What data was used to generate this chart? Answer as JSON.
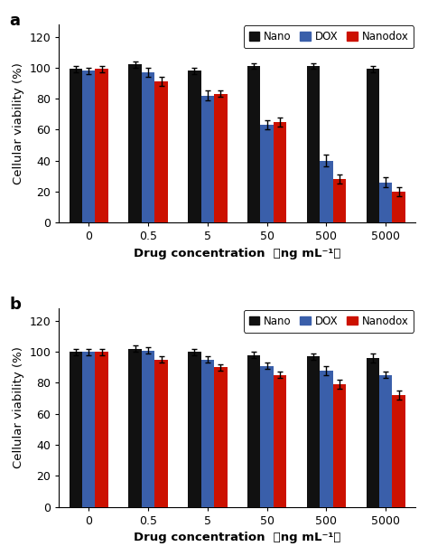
{
  "panel_a": {
    "label": "a",
    "categories": [
      "0",
      "0.5",
      "5",
      "50",
      "500",
      "5000"
    ],
    "nano": [
      99,
      102,
      98,
      101,
      101,
      99
    ],
    "dox": [
      98,
      97,
      82,
      63,
      40,
      26
    ],
    "nanodox": [
      99,
      91,
      83,
      65,
      28,
      20
    ],
    "nano_err": [
      2,
      2,
      2,
      2,
      2,
      2
    ],
    "dox_err": [
      2,
      3,
      3,
      3,
      4,
      3
    ],
    "nanodox_err": [
      2,
      3,
      2,
      3,
      3,
      3
    ],
    "ylim": [
      0,
      128
    ],
    "yticks": [
      0,
      20,
      40,
      60,
      80,
      100,
      120
    ]
  },
  "panel_b": {
    "label": "b",
    "categories": [
      "0",
      "0.5",
      "5",
      "50",
      "500",
      "5000"
    ],
    "nano": [
      100,
      102,
      100,
      98,
      97,
      96
    ],
    "dox": [
      100,
      101,
      95,
      91,
      88,
      85
    ],
    "nanodox": [
      100,
      95,
      90,
      85,
      79,
      72
    ],
    "nano_err": [
      2,
      2,
      2,
      2,
      2,
      3
    ],
    "dox_err": [
      2,
      2,
      2,
      2,
      3,
      2
    ],
    "nanodox_err": [
      2,
      2,
      2,
      2,
      3,
      3
    ],
    "ylim": [
      0,
      128
    ],
    "yticks": [
      0,
      20,
      40,
      60,
      80,
      100,
      120
    ]
  },
  "colors": {
    "nano": "#111111",
    "dox": "#3a5faa",
    "nanodox": "#cc1100"
  },
  "bar_width": 0.22,
  "xlabel_part1": "Drug concentration",
  "xlabel_part2": "（ng mL⁻¹）",
  "ylabel": "Cellular viability (%)",
  "legend_labels": [
    "Nano",
    "DOX",
    "Nanodox"
  ],
  "figsize": [
    4.74,
    6.15
  ],
  "dpi": 100
}
